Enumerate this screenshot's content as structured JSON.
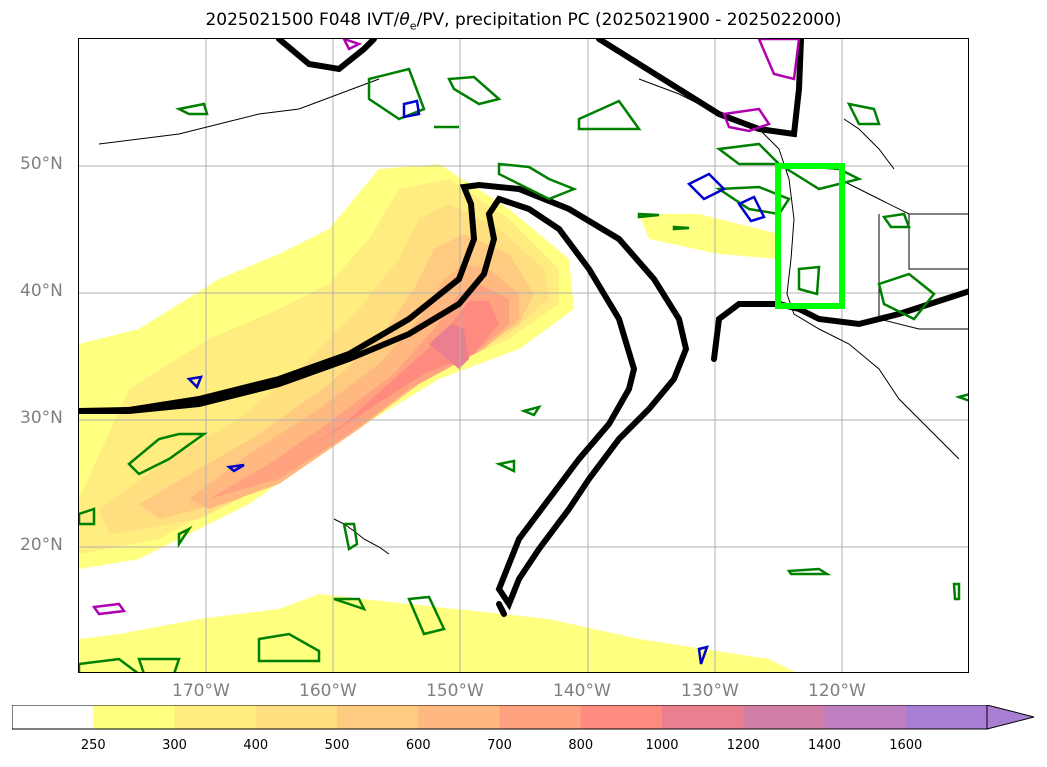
{
  "figure": {
    "title": "2025021500 F048 IVT/θe/PV, precipitation PC (2025021900 - 2025022000)",
    "title_prefix": "2025021500 F048 IVT/",
    "title_theta": "θ",
    "title_theta_sub": "e",
    "title_suffix": "/PV, precipitation PC (2025021900 - 2025022000)"
  },
  "axes": {
    "lat_labels": [
      "50°N",
      "40°N",
      "30°N",
      "20°N"
    ],
    "lon_labels": [
      "170°W",
      "160°W",
      "150°W",
      "140°W",
      "130°W",
      "120°W"
    ]
  },
  "colorbar": {
    "ticks": [
      "250",
      "300",
      "400",
      "500",
      "600",
      "700",
      "800",
      "1000",
      "1200",
      "1400",
      "1600"
    ],
    "colors": [
      "#ffffff",
      "#ffff80",
      "#ffed80",
      "#ffdf80",
      "#ffcb80",
      "#ffb880",
      "#ffa27f",
      "#ff8a7f",
      "#e97f8f",
      "#d27fa8",
      "#be7fc0",
      "#a97fd3"
    ],
    "extend": "max"
  },
  "chart_data": {
    "type": "map",
    "projection": "PlateCarree",
    "lon_range": [
      -180,
      -110
    ],
    "lat_range": [
      10,
      60
    ],
    "grid": true,
    "fields": {
      "ivt_filled_contours": {
        "units_levels": [
          250,
          300,
          400,
          500,
          600,
          700,
          800,
          1000,
          1200,
          1400,
          1600
        ],
        "max_region": "near 37N 150W, about 800-1000"
      },
      "black_contour": "thick black dynamic tropopause / theta-e line",
      "green_contours": "precipitation PC",
      "blue_contours": "precipitation PC (negative)",
      "magenta_contours": "precipitation PC (high)",
      "highlight_box": {
        "lon": [
          -125,
          -120
        ],
        "lat": [
          39,
          50
        ],
        "color": "#00ff00"
      }
    }
  }
}
